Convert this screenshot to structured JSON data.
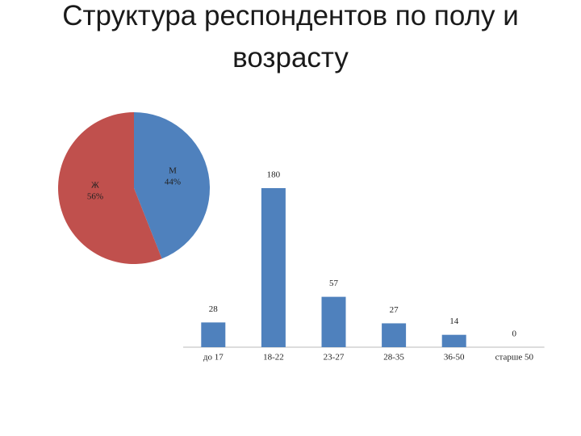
{
  "title": "Структура респондентов по полу и возрасту",
  "chart_data": [
    {
      "type": "pie",
      "categories": [
        "М",
        "Ж"
      ],
      "values": [
        44,
        56
      ],
      "value_labels": [
        "44%",
        "56%"
      ],
      "colors": [
        "#4f81bd",
        "#c0504d"
      ]
    },
    {
      "type": "bar",
      "categories": [
        "до 17",
        "18-22",
        "23-27",
        "28-35",
        "36-50",
        "старше 50"
      ],
      "values": [
        28,
        180,
        57,
        27,
        14,
        0
      ],
      "color": "#4f81bd"
    }
  ]
}
